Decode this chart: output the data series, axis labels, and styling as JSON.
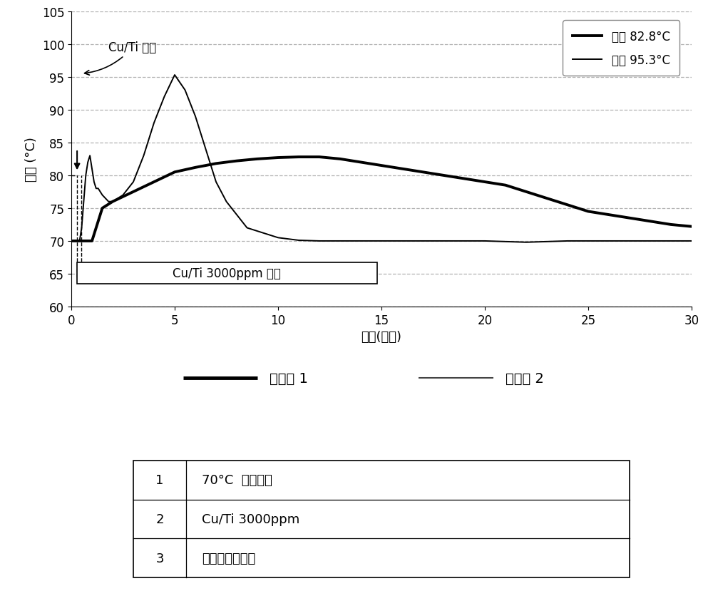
{
  "xlabel": "时间(分钟)",
  "ylabel": "温度 (°C)",
  "xlim": [
    0,
    30
  ],
  "ylim": [
    60,
    105
  ],
  "xticks": [
    0,
    5,
    10,
    15,
    20,
    25,
    30
  ],
  "yticks": [
    60,
    65,
    70,
    75,
    80,
    85,
    90,
    95,
    100,
    105
  ],
  "grid_color": "#aaaaaa",
  "background_color": "#ffffff",
  "line1_color": "#000000",
  "line2_color": "#000000",
  "line1_label": "最大 82.8°C",
  "line2_label": "最大 95.3°C",
  "legend1_label": "比较例 1",
  "legend2_label": "比较例 2",
  "annotation_curti": "Cu/Ti 添加",
  "annotation_box": "Cu/Ti 3000ppm 添加",
  "table_rows": [
    [
      "1",
      "70°C  恒温保持"
    ],
    [
      "2",
      "Cu/Ti 3000ppm"
    ],
    [
      "3",
      "温度变化的确认"
    ]
  ],
  "line1_x": [
    0,
    0.3,
    0.5,
    0.7,
    1.0,
    1.5,
    2.0,
    3.0,
    4.0,
    5.0,
    6.0,
    7.0,
    8.0,
    9.0,
    10.0,
    11.0,
    12.0,
    13.0,
    14.0,
    15.0,
    16.0,
    17.0,
    18.0,
    19.0,
    20.0,
    21.0,
    22.0,
    23.0,
    24.0,
    25.0,
    26.0,
    27.0,
    28.0,
    29.0,
    30.0
  ],
  "line1_y": [
    70,
    70,
    70,
    70,
    70,
    75,
    76,
    77.5,
    79,
    80.5,
    81.2,
    81.8,
    82.2,
    82.5,
    82.7,
    82.8,
    82.8,
    82.5,
    82.0,
    81.5,
    81.0,
    80.5,
    80.0,
    79.5,
    79.0,
    78.5,
    77.5,
    76.5,
    75.5,
    74.5,
    74.0,
    73.5,
    73.0,
    72.5,
    72.2
  ],
  "line2_x": [
    0,
    0.25,
    0.4,
    0.5,
    0.6,
    0.7,
    0.8,
    0.9,
    1.0,
    1.1,
    1.2,
    1.3,
    1.5,
    1.8,
    2.0,
    2.5,
    3.0,
    3.5,
    4.0,
    4.5,
    5.0,
    5.5,
    6.0,
    6.5,
    7.0,
    7.5,
    8.0,
    8.5,
    9.0,
    9.5,
    10.0,
    10.5,
    11.0,
    12.0,
    13.0,
    14.0,
    15.0,
    16.0,
    17.0,
    18.0,
    19.0,
    20.0,
    22.0,
    24.0,
    26.0,
    28.0,
    30.0
  ],
  "line2_y": [
    70,
    70,
    70,
    72,
    76,
    80,
    82,
    83,
    81,
    79,
    78,
    78,
    77,
    76,
    76,
    77,
    79,
    83,
    88,
    92,
    95.3,
    93,
    89,
    84,
    79,
    76,
    74,
    72,
    71.5,
    71,
    70.5,
    70.3,
    70.1,
    70,
    70,
    70,
    70,
    70,
    70,
    70,
    70,
    70,
    69.8,
    70,
    70,
    70,
    70
  ]
}
